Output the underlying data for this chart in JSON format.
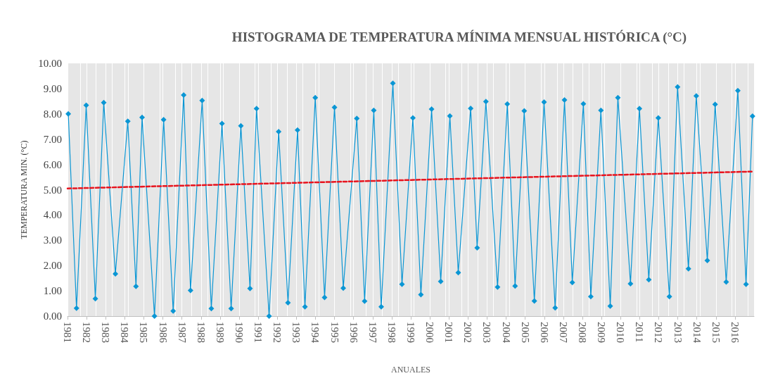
{
  "chart_data": {
    "type": "line",
    "title": "HISTOGRAMA DE TEMPERATURA MÍNIMA MENSUAL HISTÓRICA (°C)",
    "xlabel": "ANUALES",
    "ylabel": "TEMPERATURA MIN. (°C)",
    "xlim": [
      1981,
      2017
    ],
    "xticks": [
      1981,
      1982,
      1983,
      1984,
      1985,
      1986,
      1987,
      1988,
      1989,
      1990,
      1991,
      1992,
      1993,
      1994,
      1995,
      1996,
      1997,
      1998,
      1999,
      2000,
      2001,
      2002,
      2003,
      2004,
      2005,
      2006,
      2007,
      2008,
      2009,
      2010,
      2011,
      2012,
      2013,
      2014,
      2015,
      2016
    ],
    "ylim": [
      0,
      10
    ],
    "yticks": [
      {
        "value": 0,
        "label": "0.00"
      },
      {
        "value": 1,
        "label": "1.00"
      },
      {
        "value": 2,
        "label": "2.00"
      },
      {
        "value": 3,
        "label": "3.00"
      },
      {
        "value": 4,
        "label": "4.00"
      },
      {
        "value": 5,
        "label": "5.00"
      },
      {
        "value": 6,
        "label": "6.00"
      },
      {
        "value": 7,
        "label": "7.00"
      },
      {
        "value": 8,
        "label": "8.00"
      },
      {
        "value": 9,
        "label": "9.00"
      },
      {
        "value": 10,
        "label": "10.00"
      }
    ],
    "grid": "x",
    "series": [
      {
        "color": "#0a96d4",
        "marker": "diamond",
        "line_style": "solid",
        "x": [
          1981.04,
          1981.47,
          1981.98,
          1982.46,
          1982.9,
          1983.51,
          1984.16,
          1984.59,
          1984.91,
          1985.56,
          1986.04,
          1986.54,
          1987.09,
          1987.45,
          1988.06,
          1988.54,
          1989.1,
          1989.58,
          1990.09,
          1990.57,
          1990.91,
          1991.57,
          1992.07,
          1992.56,
          1993.06,
          1993.45,
          1993.99,
          1994.48,
          1995.0,
          1995.46,
          1996.17,
          1996.58,
          1997.06,
          1997.45,
          1998.06,
          1998.54,
          1999.11,
          1999.53,
          2000.09,
          2000.57,
          2001.05,
          2001.49,
          2002.14,
          2002.48,
          2002.94,
          2003.55,
          2004.06,
          2004.47,
          2004.95,
          2005.48,
          2005.99,
          2006.57,
          2007.06,
          2007.47,
          2008.05,
          2008.44,
          2008.97,
          2009.46,
          2009.86,
          2010.52,
          2010.99,
          2011.48,
          2011.98,
          2012.56,
          2012.99,
          2013.56,
          2013.97,
          2014.55,
          2014.96,
          2015.54,
          2016.15,
          2016.58,
          2016.92
        ],
        "values": [
          8.0,
          0.31,
          8.34,
          0.69,
          8.45,
          1.67,
          7.71,
          1.18,
          7.86,
          0.0,
          7.77,
          0.2,
          8.75,
          1.02,
          8.53,
          0.3,
          7.62,
          0.3,
          7.53,
          1.09,
          8.21,
          0.0,
          7.3,
          0.53,
          7.36,
          0.37,
          8.64,
          0.74,
          8.26,
          1.11,
          7.82,
          0.59,
          8.14,
          0.37,
          9.21,
          1.26,
          7.84,
          0.85,
          8.19,
          1.37,
          7.92,
          1.72,
          8.22,
          2.7,
          8.49,
          1.15,
          8.39,
          1.19,
          8.12,
          0.6,
          8.47,
          0.33,
          8.55,
          1.33,
          8.4,
          0.77,
          8.14,
          0.4,
          8.64,
          1.28,
          8.21,
          1.44,
          7.84,
          0.77,
          9.07,
          1.87,
          8.71,
          2.2,
          8.38,
          1.35,
          8.92,
          1.26,
          7.91
        ]
      },
      {
        "color": "#e8141e",
        "marker": "none",
        "line_style": "dashed",
        "x": [
          1981,
          2016.92
        ],
        "values": [
          5.05,
          5.72
        ]
      }
    ]
  }
}
